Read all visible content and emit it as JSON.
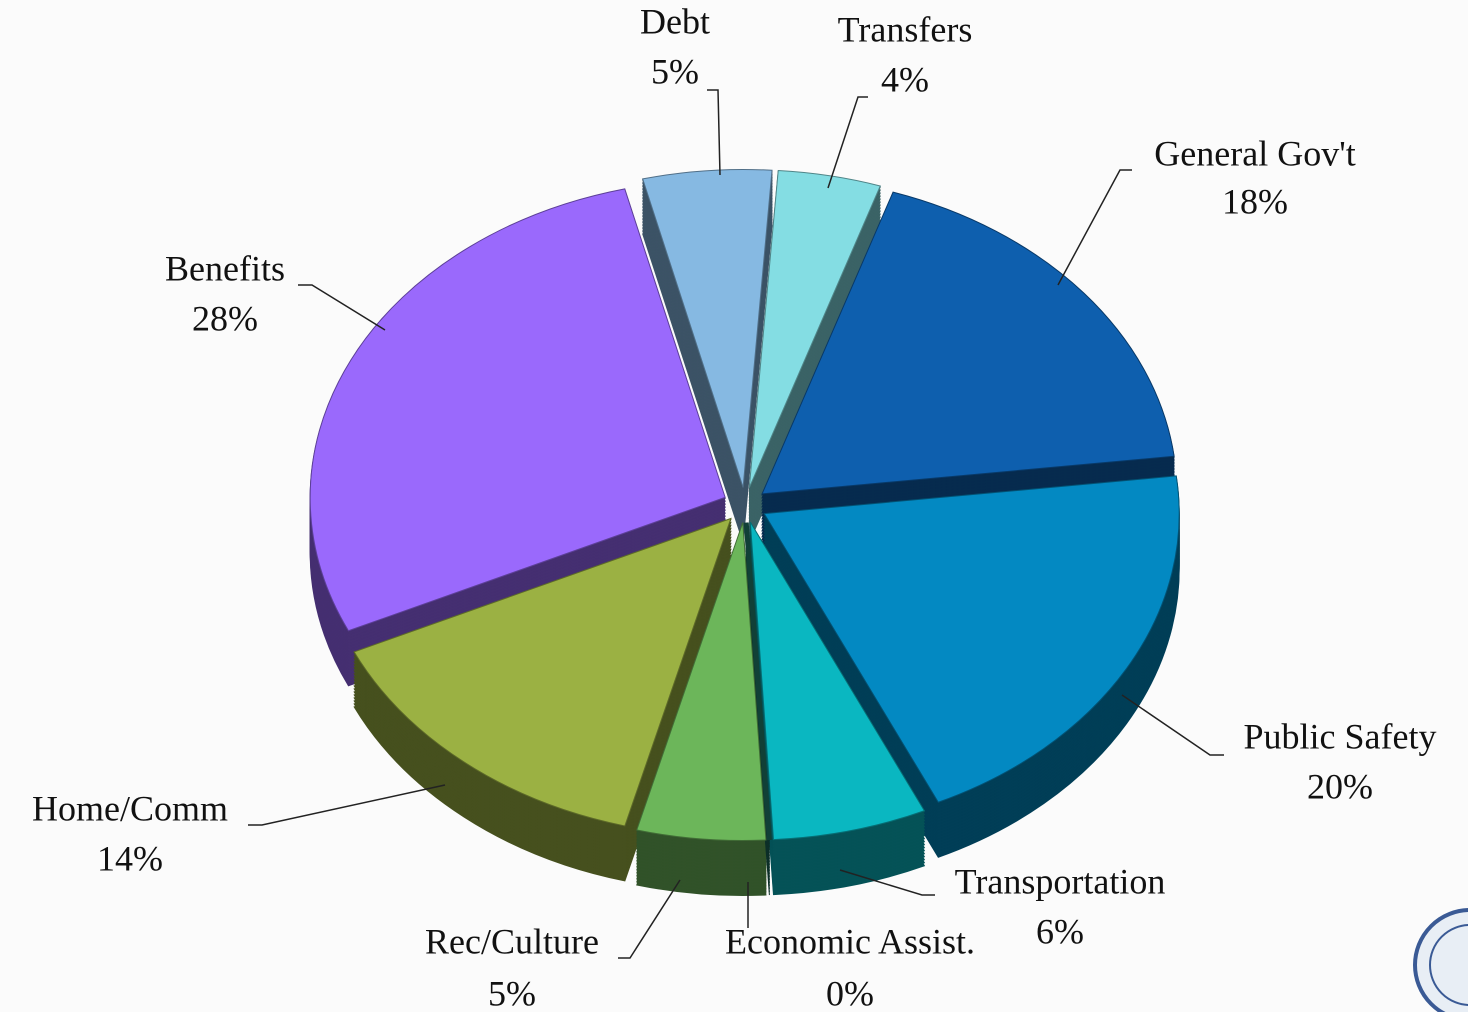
{
  "chart_data": {
    "type": "pie",
    "categories": [
      "Transfers",
      "General Gov't",
      "Public Safety",
      "Transportation",
      "Economic Assist.",
      "Rec/Culture",
      "Home/Comm",
      "Benefits",
      "Debt"
    ],
    "values": [
      4,
      18,
      20,
      6,
      0,
      5,
      14,
      28,
      5
    ],
    "value_labels": [
      "4%",
      "18%",
      "20%",
      "6%",
      "0%",
      "5%",
      "14%",
      "28%",
      "5%"
    ],
    "colors": [
      "#84dde3",
      "#0e5fae",
      "#0389c2",
      "#0ab7c1",
      "#1d6b5c",
      "#6cb65a",
      "#9bb143",
      "#9a69fc",
      "#86b9e2"
    ]
  }
}
